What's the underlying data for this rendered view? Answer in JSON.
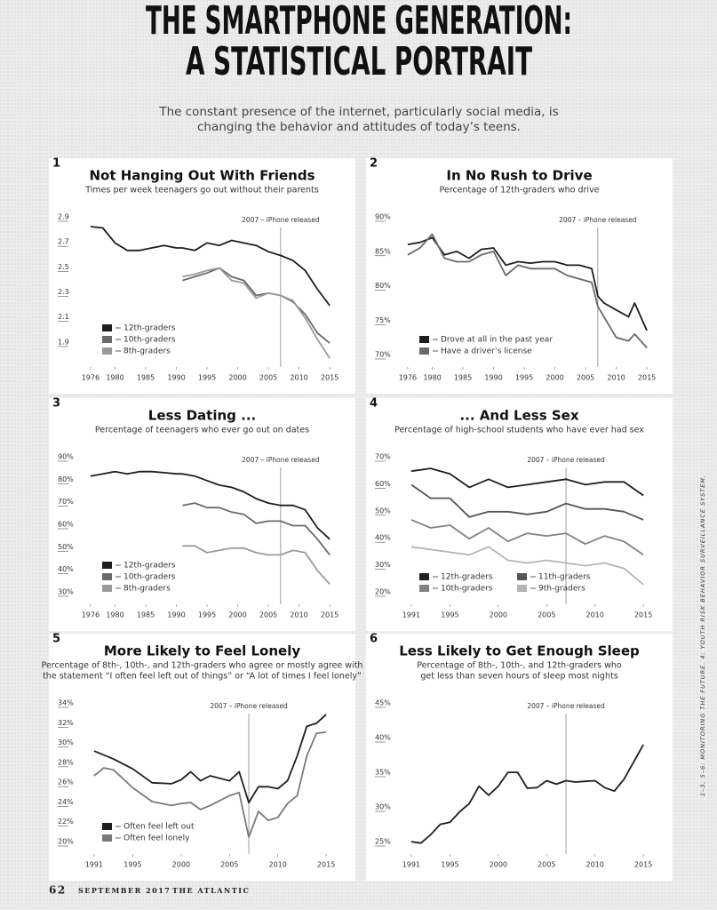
{
  "header": {
    "title": [
      "THE SMARTPHONE GENERATION:",
      "A STATISTICAL PORTRAIT"
    ],
    "subtitle": [
      "The constant presence of the internet, particularly social media, is",
      "changing the behavior and attitudes of today’s teens."
    ]
  },
  "chart_data": [
    {
      "type": "line",
      "panel": "1",
      "title": "Not Hanging Out With Friends",
      "subtitle": [
        "Times per week teenagers go out without their parents"
      ],
      "x": [
        1976,
        1978,
        1980,
        1982,
        1984,
        1986,
        1988,
        1990,
        1991,
        1993,
        1995,
        1997,
        1999,
        2001,
        2003,
        2005,
        2007,
        2009,
        2011,
        2013,
        2015
      ],
      "series": [
        {
          "name": "12th-graders",
          "color": "#1e1e1e",
          "values": [
            2.85,
            2.84,
            2.72,
            2.66,
            2.66,
            2.68,
            2.7,
            2.68,
            2.68,
            2.66,
            2.72,
            2.7,
            2.74,
            2.72,
            2.7,
            2.65,
            2.62,
            2.58,
            2.5,
            2.35,
            2.22
          ]
        },
        {
          "name": "10th-graders",
          "color": "#6a6a6a",
          "values": [
            null,
            null,
            null,
            null,
            null,
            null,
            null,
            null,
            2.42,
            2.45,
            2.48,
            2.52,
            2.45,
            2.42,
            2.3,
            2.32,
            2.3,
            2.25,
            2.15,
            2.0,
            1.92
          ]
        },
        {
          "name": "8th-graders",
          "color": "#9a9a9a",
          "values": [
            null,
            null,
            null,
            null,
            null,
            null,
            null,
            null,
            2.45,
            2.47,
            2.5,
            2.52,
            2.42,
            2.4,
            2.28,
            2.32,
            2.3,
            2.26,
            2.12,
            1.95,
            1.8
          ]
        }
      ],
      "xlim": [
        1975,
        2016
      ],
      "ylim": [
        1.8,
        2.9
      ],
      "xticks": [
        1976,
        1980,
        1985,
        1990,
        1995,
        2000,
        2005,
        2010,
        2015
      ],
      "yticks": [
        1.9,
        2.1,
        2.3,
        2.5,
        2.7,
        2.9
      ],
      "annotation": {
        "text": "2007 – iPhone released",
        "x": 2007
      },
      "legend": "lower left",
      "legend_columns": 1
    },
    {
      "type": "line",
      "panel": "2",
      "title": "In No Rush to Drive",
      "subtitle": [
        "Percentage of 12th-graders who drive"
      ],
      "x": [
        1976,
        1978,
        1980,
        1982,
        1984,
        1986,
        1988,
        1990,
        1992,
        1994,
        1996,
        1998,
        2000,
        2002,
        2004,
        2006,
        2007,
        2008,
        2010,
        2012,
        2013,
        2015
      ],
      "series": [
        {
          "name": "Drove at all in the past year",
          "color": "#1e1e1e",
          "values": [
            86.5,
            86.8,
            87.5,
            85,
            85.5,
            84.5,
            85.8,
            86,
            83.5,
            84,
            83.8,
            84,
            84,
            83.5,
            83.5,
            83,
            79,
            78,
            77,
            76,
            78,
            74
          ]
        },
        {
          "name": "Have a driver’s license",
          "color": "#6a6a6a",
          "values": [
            85,
            86,
            88,
            84.5,
            84,
            84,
            85,
            85.5,
            82,
            83.5,
            83,
            83,
            83,
            82,
            81.5,
            81,
            77.5,
            76,
            73,
            72.5,
            73.5,
            71.5
          ]
        }
      ],
      "xlim": [
        1975,
        2016
      ],
      "ylim": [
        70,
        90
      ],
      "xticks": [
        1976,
        1980,
        1985,
        1990,
        1995,
        2000,
        2005,
        2010,
        2015
      ],
      "yticks": [
        {
          "value": 70,
          "label": "70%"
        },
        {
          "value": 75,
          "label": "75%"
        },
        {
          "value": 80,
          "label": "80%"
        },
        {
          "value": 85,
          "label": "85%"
        },
        {
          "value": 90,
          "label": "90%"
        }
      ],
      "annotation": {
        "text": "2007 – iPhone released",
        "x": 2007
      },
      "legend": "lower left",
      "legend_columns": 1
    },
    {
      "type": "line",
      "panel": "3",
      "title": "Less Dating ...",
      "subtitle": [
        "Percentage of teenagers who ever go out on dates"
      ],
      "x": [
        1976,
        1978,
        1980,
        1982,
        1984,
        1986,
        1988,
        1990,
        1991,
        1993,
        1995,
        1997,
        1999,
        2001,
        2003,
        2005,
        2007,
        2009,
        2011,
        2013,
        2015
      ],
      "series": [
        {
          "name": "12th-graders",
          "color": "#1e1e1e",
          "values": [
            83,
            84,
            85,
            84,
            85,
            85,
            84.5,
            84,
            84,
            83,
            81,
            79,
            78,
            76,
            73,
            71,
            70,
            70,
            68,
            60,
            55
          ]
        },
        {
          "name": "10th-graders",
          "color": "#6a6a6a",
          "values": [
            null,
            null,
            null,
            null,
            null,
            null,
            null,
            null,
            70,
            71,
            69,
            69,
            67,
            66,
            62,
            63,
            63,
            61,
            61,
            55,
            48
          ]
        },
        {
          "name": "8th-graders",
          "color": "#9a9a9a",
          "values": [
            null,
            null,
            null,
            null,
            null,
            null,
            null,
            null,
            52,
            52,
            49,
            50,
            51,
            51,
            49,
            48,
            48,
            50,
            49,
            41,
            35
          ]
        }
      ],
      "xlim": [
        1975,
        2016
      ],
      "ylim": [
        30,
        90
      ],
      "xticks": [
        1976,
        1980,
        1985,
        1990,
        1995,
        2000,
        2005,
        2010,
        2015
      ],
      "yticks": [
        {
          "value": 30,
          "label": "30%"
        },
        {
          "value": 40,
          "label": "40%"
        },
        {
          "value": 50,
          "label": "50%"
        },
        {
          "value": 60,
          "label": "60%"
        },
        {
          "value": 70,
          "label": "70%"
        },
        {
          "value": 80,
          "label": "80%"
        },
        {
          "value": 90,
          "label": "90%"
        }
      ],
      "annotation": {
        "text": "2007 – iPhone released",
        "x": 2007
      },
      "legend": "lower left",
      "legend_columns": 1
    },
    {
      "type": "line",
      "panel": "4",
      "title": "... And Less Sex",
      "subtitle": [
        "Percentage of high-school students who have ever had sex"
      ],
      "x": [
        1991,
        1993,
        1995,
        1997,
        1999,
        2001,
        2003,
        2005,
        2007,
        2009,
        2011,
        2013,
        2015
      ],
      "series": [
        {
          "name": "12th-graders",
          "color": "#1e1e1e",
          "values": [
            66,
            67,
            65,
            60,
            63,
            60,
            61,
            62,
            63,
            61,
            62,
            62,
            57
          ]
        },
        {
          "name": "11th-graders",
          "color": "#555555",
          "values": [
            61,
            56,
            56,
            49,
            51,
            51,
            50,
            51,
            54,
            52,
            52,
            51,
            48
          ]
        },
        {
          "name": "10th-graders",
          "color": "#828282",
          "values": [
            48,
            45,
            46,
            41,
            45,
            40,
            43,
            42,
            43,
            39,
            42,
            40,
            35
          ]
        },
        {
          "name": "9th-graders",
          "color": "#b4b4b4",
          "values": [
            38,
            37,
            36,
            35,
            38,
            33,
            32,
            33,
            32,
            31,
            32,
            30,
            24
          ]
        }
      ],
      "xlim": [
        1990,
        2016
      ],
      "ylim": [
        20,
        70
      ],
      "xticks": [
        1991,
        1995,
        2000,
        2005,
        2010,
        2015
      ],
      "yticks": [
        {
          "value": 20,
          "label": "20%"
        },
        {
          "value": 30,
          "label": "30%"
        },
        {
          "value": 40,
          "label": "40%"
        },
        {
          "value": 50,
          "label": "50%"
        },
        {
          "value": 60,
          "label": "60%"
        },
        {
          "value": 70,
          "label": "70%"
        }
      ],
      "annotation": {
        "text": "2007 – iPhone released",
        "x": 2007
      },
      "legend": "lower left",
      "legend_columns": 2
    },
    {
      "type": "line",
      "panel": "5",
      "title": "More Likely to Feel Lonely",
      "subtitle": [
        "Percentage of 8th-, 10th-, and 12th-graders who agree or mostly agree with",
        "the statement “I often feel left out of things” or “A lot of times I feel lonely”"
      ],
      "x": [
        1991,
        1992,
        1993,
        1995,
        1997,
        1999,
        2000,
        2001,
        2002,
        2003,
        2005,
        2006,
        2007,
        2008,
        2009,
        2010,
        2011,
        2012,
        2013,
        2014,
        2015
      ],
      "series": [
        {
          "name": "Often feel left out",
          "color": "#1e1e1e",
          "values": [
            29.5,
            29.1,
            28.7,
            27.7,
            26.3,
            26.2,
            26.6,
            27.4,
            26.5,
            27,
            26.5,
            27.4,
            24.3,
            25.9,
            25.9,
            25.7,
            26.5,
            29,
            32,
            32.3,
            33.2
          ]
        },
        {
          "name": "Often feel lonely",
          "color": "#7a7a7a",
          "values": [
            27,
            27.8,
            27.6,
            25.8,
            24.4,
            24,
            24.2,
            24.3,
            23.6,
            24,
            25,
            25.3,
            20.8,
            23.4,
            22.5,
            22.8,
            24.2,
            25,
            29,
            31.3,
            31.4
          ]
        }
      ],
      "xlim": [
        1990,
        2016
      ],
      "ylim": [
        20,
        34
      ],
      "xticks": [
        1991,
        1995,
        2000,
        2005,
        2010,
        2015
      ],
      "yticks": [
        {
          "value": 20,
          "label": "20%"
        },
        {
          "value": 22,
          "label": "22%"
        },
        {
          "value": 24,
          "label": "24%"
        },
        {
          "value": 26,
          "label": "26%"
        },
        {
          "value": 28,
          "label": "28%"
        },
        {
          "value": 30,
          "label": "30%"
        },
        {
          "value": 32,
          "label": "32%"
        },
        {
          "value": 34,
          "label": "34%"
        }
      ],
      "annotation": {
        "text": "2007 – iPhone released",
        "x": 2007
      },
      "legend": "lower left",
      "legend_columns": 1
    },
    {
      "type": "line",
      "panel": "6",
      "title": "Less Likely to Get Enough Sleep",
      "subtitle": [
        "Percentage of 8th-, 10th-, and 12th-graders who",
        "get less than seven hours of sleep most nights"
      ],
      "x": [
        1991,
        1992,
        1993,
        1994,
        1995,
        1996,
        1997,
        1998,
        1999,
        2000,
        2001,
        2002,
        2003,
        2004,
        2005,
        2006,
        2007,
        2008,
        2009,
        2010,
        2011,
        2012,
        2013,
        2014,
        2015
      ],
      "series": [
        {
          "color": "#1e1e1e",
          "values": [
            25.5,
            25.3,
            26.5,
            28,
            28.3,
            29.8,
            31,
            33.5,
            32.2,
            33.5,
            35.5,
            35.5,
            33.2,
            33.3,
            34.3,
            33.8,
            34.3,
            34.1,
            34.2,
            34.3,
            33.3,
            32.8,
            34.5,
            37,
            39.5
          ]
        }
      ],
      "xlim": [
        1990,
        2016
      ],
      "ylim": [
        25,
        45
      ],
      "xticks": [
        1991,
        1995,
        2000,
        2005,
        2010,
        2015
      ],
      "yticks": [
        {
          "value": 25,
          "label": "25%"
        },
        {
          "value": 30,
          "label": "30%"
        },
        {
          "value": 35,
          "label": "35%"
        },
        {
          "value": 40,
          "label": "40%"
        },
        {
          "value": 45,
          "label": "45%"
        }
      ],
      "annotation": {
        "text": "2007 – iPhone released",
        "x": 2007
      }
    }
  ],
  "footer": {
    "page": "62",
    "date": "SEPTEMBER 2017",
    "publication": "THE ATLANTIC"
  },
  "source_note": "1–3, 5–6: MONITORING THE FUTURE. 4: YOUTH RISK BEHAVIOR SURVEILLANCE SYSTEM."
}
